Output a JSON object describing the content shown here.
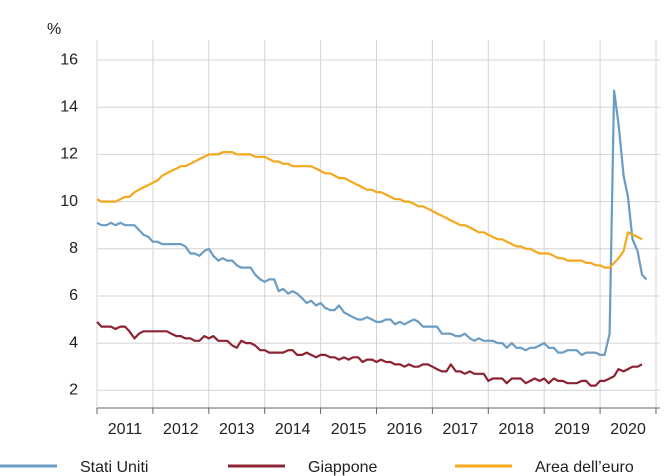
{
  "chart_data": {
    "type": "line",
    "y_label": "%",
    "xlim": [
      2011,
      2021
    ],
    "xticks": [
      2011,
      2012,
      2013,
      2014,
      2015,
      2016,
      2017,
      2018,
      2019,
      2020,
      2021
    ],
    "categories": [
      "2011",
      "2012",
      "2013",
      "2014",
      "2015",
      "2016",
      "2017",
      "2018",
      "2019",
      "2020"
    ],
    "ylim": [
      1.25,
      16.85
    ],
    "yticks": [
      2,
      4,
      6,
      8,
      10,
      12,
      14,
      16
    ],
    "grid": true,
    "legend": "bottom",
    "x": [
      2011.0,
      2011.08,
      2011.17,
      2011.25,
      2011.33,
      2011.42,
      2011.5,
      2011.58,
      2011.67,
      2011.75,
      2011.83,
      2011.92,
      2012.0,
      2012.08,
      2012.17,
      2012.25,
      2012.33,
      2012.42,
      2012.5,
      2012.58,
      2012.67,
      2012.75,
      2012.83,
      2012.92,
      2013.0,
      2013.08,
      2013.17,
      2013.25,
      2013.33,
      2013.42,
      2013.5,
      2013.58,
      2013.67,
      2013.75,
      2013.83,
      2013.92,
      2014.0,
      2014.08,
      2014.17,
      2014.25,
      2014.33,
      2014.42,
      2014.5,
      2014.58,
      2014.67,
      2014.75,
      2014.83,
      2014.92,
      2015.0,
      2015.08,
      2015.17,
      2015.25,
      2015.33,
      2015.42,
      2015.5,
      2015.58,
      2015.67,
      2015.75,
      2015.83,
      2015.92,
      2016.0,
      2016.08,
      2016.17,
      2016.25,
      2016.33,
      2016.42,
      2016.5,
      2016.58,
      2016.67,
      2016.75,
      2016.83,
      2016.92,
      2017.0,
      2017.08,
      2017.17,
      2017.25,
      2017.33,
      2017.42,
      2017.5,
      2017.58,
      2017.67,
      2017.75,
      2017.83,
      2017.92,
      2018.0,
      2018.08,
      2018.17,
      2018.25,
      2018.33,
      2018.42,
      2018.5,
      2018.58,
      2018.67,
      2018.75,
      2018.83,
      2018.92,
      2019.0,
      2019.08,
      2019.17,
      2019.25,
      2019.33,
      2019.42,
      2019.5,
      2019.58,
      2019.67,
      2019.75,
      2019.83,
      2019.92,
      2020.0,
      2020.08,
      2020.17,
      2020.25,
      2020.33,
      2020.42,
      2020.5,
      2020.58,
      2020.67,
      2020.75,
      2020.83
    ],
    "series": [
      {
        "name": "Stati Uniti",
        "color": "#6b9cc3",
        "values": [
          9.1,
          9.0,
          9.0,
          9.1,
          9.0,
          9.1,
          9.0,
          9.0,
          9.0,
          8.8,
          8.6,
          8.5,
          8.3,
          8.3,
          8.2,
          8.2,
          8.2,
          8.2,
          8.2,
          8.1,
          7.8,
          7.8,
          7.7,
          7.9,
          8.0,
          7.7,
          7.5,
          7.6,
          7.5,
          7.5,
          7.3,
          7.2,
          7.2,
          7.2,
          6.9,
          6.7,
          6.6,
          6.7,
          6.7,
          6.2,
          6.3,
          6.1,
          6.2,
          6.1,
          5.9,
          5.7,
          5.8,
          5.6,
          5.7,
          5.5,
          5.4,
          5.4,
          5.6,
          5.3,
          5.2,
          5.1,
          5.0,
          5.0,
          5.1,
          5.0,
          4.9,
          4.9,
          5.0,
          5.0,
          4.8,
          4.9,
          4.8,
          4.9,
          5.0,
          4.9,
          4.7,
          4.7,
          4.7,
          4.7,
          4.4,
          4.4,
          4.4,
          4.3,
          4.3,
          4.4,
          4.2,
          4.1,
          4.2,
          4.1,
          4.1,
          4.1,
          4.0,
          4.0,
          3.8,
          4.0,
          3.8,
          3.8,
          3.7,
          3.8,
          3.8,
          3.9,
          4.0,
          3.8,
          3.8,
          3.6,
          3.6,
          3.7,
          3.7,
          3.7,
          3.5,
          3.6,
          3.6,
          3.6,
          3.5,
          3.5,
          4.4,
          14.7,
          13.3,
          11.1,
          10.2,
          8.4,
          7.9,
          6.9,
          6.7
        ]
      },
      {
        "name": "Giappone",
        "color": "#8c2333",
        "values": [
          4.9,
          4.7,
          4.7,
          4.7,
          4.6,
          4.7,
          4.7,
          4.5,
          4.2,
          4.4,
          4.5,
          4.5,
          4.5,
          4.5,
          4.5,
          4.5,
          4.4,
          4.3,
          4.3,
          4.2,
          4.2,
          4.1,
          4.1,
          4.3,
          4.2,
          4.3,
          4.1,
          4.1,
          4.1,
          3.9,
          3.8,
          4.1,
          4.0,
          4.0,
          3.9,
          3.7,
          3.7,
          3.6,
          3.6,
          3.6,
          3.6,
          3.7,
          3.7,
          3.5,
          3.5,
          3.6,
          3.5,
          3.4,
          3.5,
          3.5,
          3.4,
          3.4,
          3.3,
          3.4,
          3.3,
          3.4,
          3.4,
          3.2,
          3.3,
          3.3,
          3.2,
          3.3,
          3.2,
          3.2,
          3.1,
          3.1,
          3.0,
          3.1,
          3.0,
          3.0,
          3.1,
          3.1,
          3.0,
          2.9,
          2.8,
          2.8,
          3.1,
          2.8,
          2.8,
          2.7,
          2.8,
          2.7,
          2.7,
          2.7,
          2.4,
          2.5,
          2.5,
          2.5,
          2.3,
          2.5,
          2.5,
          2.5,
          2.3,
          2.4,
          2.5,
          2.4,
          2.5,
          2.3,
          2.5,
          2.4,
          2.4,
          2.3,
          2.3,
          2.3,
          2.4,
          2.4,
          2.2,
          2.2,
          2.4,
          2.4,
          2.5,
          2.6,
          2.9,
          2.8,
          2.9,
          3.0,
          3.0,
          3.1,
          null
        ]
      },
      {
        "name": "Area dell’euro",
        "color": "#f5a81c",
        "values": [
          10.1,
          10.0,
          10.0,
          10.0,
          10.0,
          10.1,
          10.2,
          10.2,
          10.4,
          10.5,
          10.6,
          10.7,
          10.8,
          10.9,
          11.1,
          11.2,
          11.3,
          11.4,
          11.5,
          11.5,
          11.6,
          11.7,
          11.8,
          11.9,
          12.0,
          12.0,
          12.0,
          12.1,
          12.1,
          12.1,
          12.0,
          12.0,
          12.0,
          12.0,
          11.9,
          11.9,
          11.9,
          11.8,
          11.7,
          11.7,
          11.6,
          11.6,
          11.5,
          11.5,
          11.5,
          11.5,
          11.5,
          11.4,
          11.3,
          11.2,
          11.2,
          11.1,
          11.0,
          11.0,
          10.9,
          10.8,
          10.7,
          10.6,
          10.5,
          10.5,
          10.4,
          10.4,
          10.3,
          10.2,
          10.1,
          10.1,
          10.0,
          10.0,
          9.9,
          9.8,
          9.8,
          9.7,
          9.6,
          9.5,
          9.4,
          9.3,
          9.2,
          9.1,
          9.0,
          9.0,
          8.9,
          8.8,
          8.7,
          8.7,
          8.6,
          8.5,
          8.4,
          8.4,
          8.3,
          8.2,
          8.1,
          8.1,
          8.0,
          8.0,
          7.9,
          7.8,
          7.8,
          7.8,
          7.7,
          7.6,
          7.6,
          7.5,
          7.5,
          7.5,
          7.5,
          7.4,
          7.4,
          7.3,
          7.3,
          7.2,
          7.2,
          7.4,
          7.6,
          7.9,
          8.7,
          8.6,
          8.5,
          8.4,
          null
        ]
      }
    ]
  }
}
